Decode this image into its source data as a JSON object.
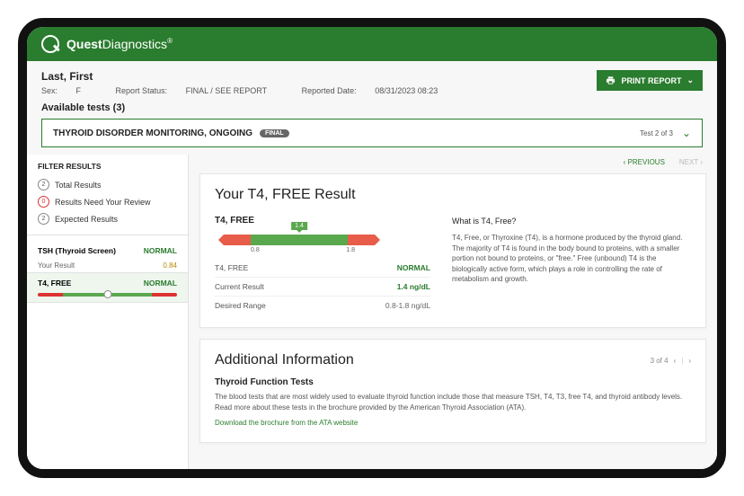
{
  "brand": {
    "name_bold": "Quest",
    "name_light": "Diagnostics",
    "reg": "®"
  },
  "patient": {
    "name": "Last, First",
    "sex_label": "Sex:",
    "sex": "F",
    "status_label": "Report Status:",
    "status": "FINAL / SEE REPORT",
    "reported_label": "Reported Date:",
    "reported": "08/31/2023 08:23"
  },
  "print_label": "PRINT REPORT",
  "available_tests_label": "Available tests (3)",
  "test_dropdown": {
    "name": "THYROID DISORDER MONITORING, ONGOING",
    "badge": "FINAL",
    "position": "Test 2 of 3"
  },
  "filters": {
    "header": "FILTER RESULTS",
    "items": [
      {
        "count": "2",
        "label": "Total Results",
        "red": false
      },
      {
        "count": "0",
        "label": "Results Need Your Review",
        "red": true
      },
      {
        "count": "2",
        "label": "Expected Results",
        "red": false
      }
    ]
  },
  "sidebar_tests": {
    "tsh": {
      "name": "TSH (Thyroid Screen)",
      "status": "NORMAL",
      "sub_label": "Your Result",
      "sub_value": "0.84"
    },
    "t4": {
      "name": "T4, FREE",
      "status": "NORMAL",
      "dot_percent": 50
    }
  },
  "pager_top": {
    "prev": "PREVIOUS",
    "next": "NEXT"
  },
  "result_card": {
    "title": "Your T4, FREE Result",
    "test_name": "T4, FREE",
    "range": {
      "badge": "1.4",
      "low": "0.8",
      "high": "1.8"
    },
    "rows": [
      {
        "k": "T4, FREE",
        "v": "NORMAL",
        "cls": "v-norm"
      },
      {
        "k": "Current Result",
        "v": "1.4 ng/dL",
        "cls": "v-cur"
      },
      {
        "k": "Desired Range",
        "v": "0.8-1.8 ng/dL",
        "cls": "v"
      }
    ],
    "info": {
      "heading": "What is T4, Free?",
      "body": "T4, Free, or Thyroxine (T4), is a hormone produced by the thyroid gland. The majority of T4 is found in the body bound to proteins, with a smaller portion not bound to proteins, or \"free.\" Free (unbound) T4 is the biologically active form, which plays a role in controlling the rate of metabolism and growth."
    }
  },
  "addl": {
    "title": "Additional Information",
    "pager": "3 of 4",
    "sub": "Thyroid Function Tests",
    "body": "The blood tests that are most widely used to evaluate thyroid function include those that measure TSH, T4, T3, free T4, and thyroid antibody levels. Read more about these tests in the brochure provided by the American Thyroid Association (ATA).",
    "link": "Download the brochure from the ATA website"
  },
  "colors": {
    "brand_green": "#2a7c2e",
    "range_green": "#5aa84e",
    "range_red": "#e85c4a"
  }
}
